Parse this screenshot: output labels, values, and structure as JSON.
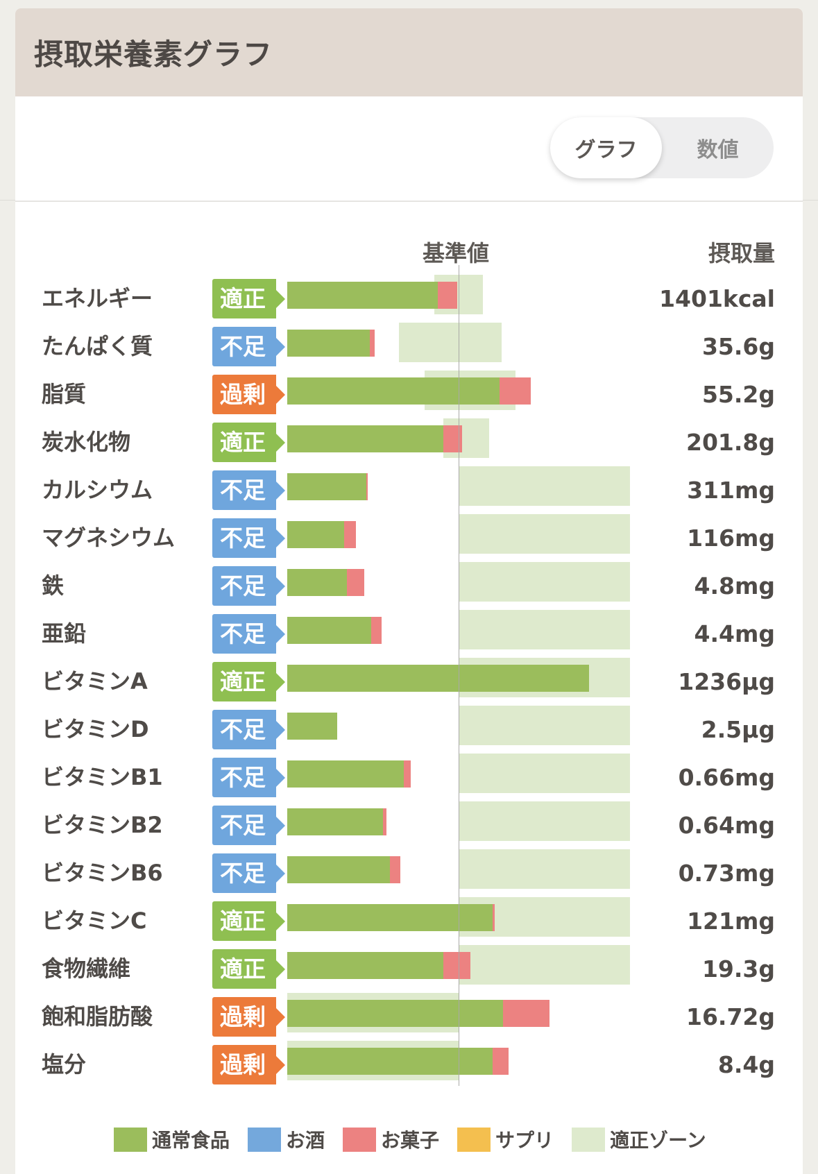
{
  "header": {
    "title": "摂取栄養素グラフ"
  },
  "toggle": {
    "graph_label": "グラフ",
    "numbers_label": "数値"
  },
  "columns": {
    "reference": "基準値",
    "intake": "摂取量"
  },
  "colors": {
    "regular_food": "#9bbd5c",
    "alcohol": "#74a8dc",
    "snacks": "#ec8281",
    "supplement": "#f4bf4f",
    "appropriate_zone": "#deeacd",
    "status_appropriate": "#8fbf51",
    "status_deficient": "#6fa6dd",
    "status_excess": "#ec7a3a"
  },
  "chart_data": {
    "type": "bar",
    "orientation": "horizontal",
    "description_units": "percent of reference value",
    "rows": [
      {
        "name": "エネルギー",
        "status": "適正",
        "status_key": "appropriate",
        "amount": "1401kcal",
        "regular": 88,
        "snack": 11,
        "zone": [
          86,
          114
        ]
      },
      {
        "name": "たんぱく質",
        "status": "不足",
        "status_key": "deficient",
        "amount": "35.6g",
        "regular": 48,
        "snack": 3,
        "zone": [
          65,
          125
        ]
      },
      {
        "name": "脂質",
        "status": "過剰",
        "status_key": "excess",
        "amount": "55.2g",
        "regular": 124,
        "snack": 18,
        "zone": [
          80,
          133
        ]
      },
      {
        "name": "炭水化物",
        "status": "適正",
        "status_key": "appropriate",
        "amount": "201.8g",
        "regular": 91,
        "snack": 11,
        "zone": [
          91,
          118
        ]
      },
      {
        "name": "カルシウム",
        "status": "不足",
        "status_key": "deficient",
        "amount": "311mg",
        "regular": 46,
        "snack": 1,
        "zone": [
          100,
          200
        ]
      },
      {
        "name": "マグネシウム",
        "status": "不足",
        "status_key": "deficient",
        "amount": "116mg",
        "regular": 33,
        "snack": 7,
        "zone": [
          100,
          200
        ]
      },
      {
        "name": "鉄",
        "status": "不足",
        "status_key": "deficient",
        "amount": "4.8mg",
        "regular": 35,
        "snack": 10,
        "zone": [
          100,
          200
        ]
      },
      {
        "name": "亜鉛",
        "status": "不足",
        "status_key": "deficient",
        "amount": "4.4mg",
        "regular": 49,
        "snack": 6,
        "zone": [
          100,
          200
        ]
      },
      {
        "name": "ビタミンA",
        "status": "適正",
        "status_key": "appropriate",
        "amount": "1236μg",
        "regular": 176,
        "snack": 0,
        "zone": [
          100,
          200
        ]
      },
      {
        "name": "ビタミンD",
        "status": "不足",
        "status_key": "deficient",
        "amount": "2.5μg",
        "regular": 29,
        "snack": 0,
        "zone": [
          100,
          200
        ]
      },
      {
        "name": "ビタミンB1",
        "status": "不足",
        "status_key": "deficient",
        "amount": "0.66mg",
        "regular": 68,
        "snack": 4,
        "zone": [
          100,
          200
        ]
      },
      {
        "name": "ビタミンB2",
        "status": "不足",
        "status_key": "deficient",
        "amount": "0.64mg",
        "regular": 56,
        "snack": 2,
        "zone": [
          100,
          200
        ]
      },
      {
        "name": "ビタミンB6",
        "status": "不足",
        "status_key": "deficient",
        "amount": "0.73mg",
        "regular": 60,
        "snack": 6,
        "zone": [
          100,
          200
        ]
      },
      {
        "name": "ビタミンC",
        "status": "適正",
        "status_key": "appropriate",
        "amount": "121mg",
        "regular": 120,
        "snack": 1,
        "zone": [
          100,
          200
        ]
      },
      {
        "name": "食物繊維",
        "status": "適正",
        "status_key": "appropriate",
        "amount": "19.3g",
        "regular": 91,
        "snack": 16,
        "zone": [
          100,
          200
        ]
      },
      {
        "name": "飽和脂肪酸",
        "status": "過剰",
        "status_key": "excess",
        "amount": "16.72g",
        "regular": 126,
        "snack": 27,
        "zone": [
          0,
          100
        ]
      },
      {
        "name": "塩分",
        "status": "過剰",
        "status_key": "excess",
        "amount": "8.4g",
        "regular": 120,
        "snack": 9,
        "zone": [
          0,
          100
        ]
      }
    ]
  },
  "legend": [
    {
      "label": "通常食品",
      "color": "#9bbd5c"
    },
    {
      "label": "お酒",
      "color": "#74a8dc"
    },
    {
      "label": "お菓子",
      "color": "#ec8281"
    },
    {
      "label": "サプリ",
      "color": "#f4bf4f"
    },
    {
      "label": "適正ゾーン",
      "color": "#deeacd"
    }
  ]
}
